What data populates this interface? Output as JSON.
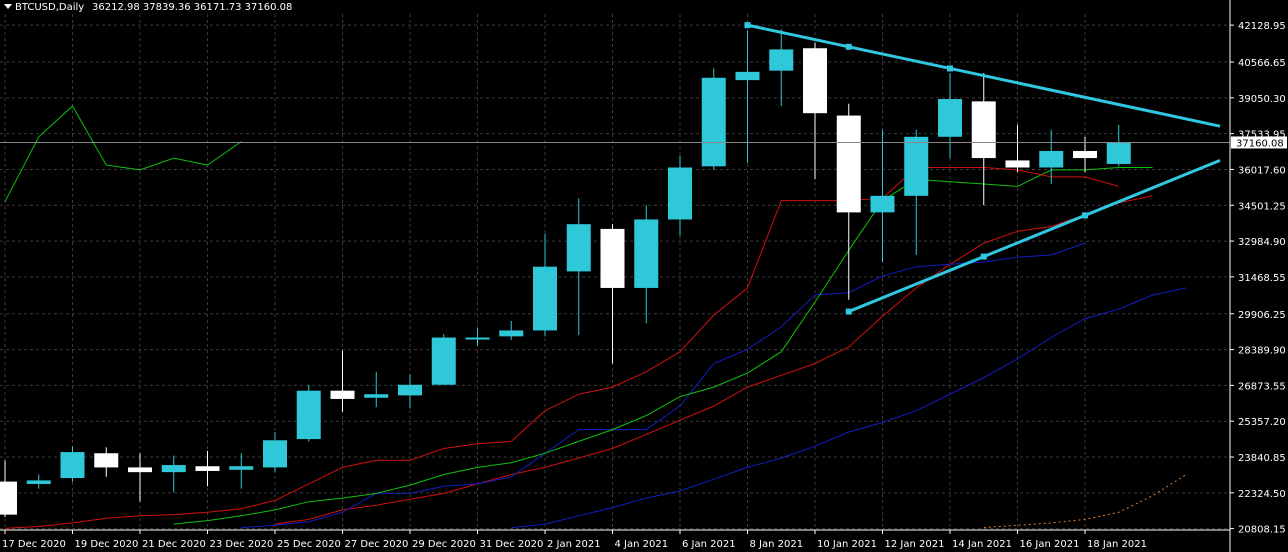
{
  "header": {
    "symbol": "BTCUSD,Daily",
    "ohlc": "36212.98 37839.36 36171.73 37160.08"
  },
  "colors": {
    "background": "#000000",
    "grid": "#3a3a3a",
    "bull_candle": "#2ec8d8",
    "bear_candle": "#ffffff",
    "ma_red": "#d01010",
    "ma_green": "#10c010",
    "ma_blue": "#1020c0",
    "trendline": "#30c8e0",
    "orange": "#e08030"
  },
  "chart_data": {
    "type": "candlestick",
    "price_axis_labels": [
      "42128.95",
      "40566.65",
      "39050.30",
      "37533.95",
      "36017.60",
      "34501.25",
      "32984.90",
      "31468.55",
      "29906.25",
      "28389.90",
      "26873.55",
      "25357.20",
      "23840.85",
      "22324.50",
      "20808.15"
    ],
    "ylim": [
      20750,
      42600
    ],
    "current_price": 37160.08,
    "current_price_label": "37160.08",
    "x_tick_labels": [
      "17 Dec 2020",
      "19 Dec 2020",
      "21 Dec 2020",
      "23 Dec 2020",
      "25 Dec 2020",
      "27 Dec 2020",
      "29 Dec 2020",
      "31 Dec 2020",
      "2 Jan 2021",
      "4 Jan 2021",
      "6 Jan 2021",
      "8 Jan 2021",
      "10 Jan 2021",
      "12 Jan 2021",
      "14 Jan 2021",
      "16 Jan 2021",
      "18 Jan 2021"
    ],
    "candles": [
      {
        "o": 22800,
        "h": 23700,
        "l": 21300,
        "c": 21400
      },
      {
        "o": 22700,
        "h": 23100,
        "l": 22500,
        "c": 22850
      },
      {
        "o": 22950,
        "h": 24300,
        "l": 22800,
        "c": 24050
      },
      {
        "o": 24000,
        "h": 24250,
        "l": 23000,
        "c": 23400
      },
      {
        "o": 23400,
        "h": 24000,
        "l": 21950,
        "c": 23200
      },
      {
        "o": 23200,
        "h": 23900,
        "l": 22350,
        "c": 23500
      },
      {
        "o": 23450,
        "h": 24100,
        "l": 22600,
        "c": 23250
      },
      {
        "o": 23300,
        "h": 24000,
        "l": 22500,
        "c": 23450
      },
      {
        "o": 23400,
        "h": 24900,
        "l": 23200,
        "c": 24550
      },
      {
        "o": 24600,
        "h": 26900,
        "l": 24500,
        "c": 26650
      },
      {
        "o": 26650,
        "h": 28350,
        "l": 25750,
        "c": 26300
      },
      {
        "o": 26350,
        "h": 27450,
        "l": 25950,
        "c": 26500
      },
      {
        "o": 26450,
        "h": 27350,
        "l": 25900,
        "c": 26900
      },
      {
        "o": 26900,
        "h": 29050,
        "l": 26900,
        "c": 28900
      },
      {
        "o": 28850,
        "h": 29300,
        "l": 28550,
        "c": 28900
      },
      {
        "o": 28950,
        "h": 29600,
        "l": 28800,
        "c": 29200
      },
      {
        "o": 29200,
        "h": 33300,
        "l": 28950,
        "c": 31900
      },
      {
        "o": 31700,
        "h": 34800,
        "l": 29000,
        "c": 33700
      },
      {
        "o": 33500,
        "h": 33700,
        "l": 27800,
        "c": 31000
      },
      {
        "o": 31000,
        "h": 34500,
        "l": 29500,
        "c": 33900
      },
      {
        "o": 33900,
        "h": 36600,
        "l": 33200,
        "c": 36100
      },
      {
        "o": 36150,
        "h": 40300,
        "l": 36000,
        "c": 39900
      },
      {
        "o": 39800,
        "h": 41900,
        "l": 36300,
        "c": 40150
      },
      {
        "o": 40200,
        "h": 41950,
        "l": 38700,
        "c": 41100
      },
      {
        "o": 41150,
        "h": 41400,
        "l": 35600,
        "c": 38400
      },
      {
        "o": 38300,
        "h": 38800,
        "l": 30500,
        "c": 34200
      },
      {
        "o": 34200,
        "h": 37700,
        "l": 32100,
        "c": 34900
      },
      {
        "o": 34900,
        "h": 37700,
        "l": 32400,
        "c": 37400
      },
      {
        "o": 37400,
        "h": 40100,
        "l": 36500,
        "c": 39000
      },
      {
        "o": 38900,
        "h": 40100,
        "l": 34500,
        "c": 36500
      },
      {
        "o": 36400,
        "h": 37900,
        "l": 35900,
        "c": 36100
      },
      {
        "o": 36100,
        "h": 37700,
        "l": 35400,
        "c": 36800
      },
      {
        "o": 36800,
        "h": 37400,
        "l": 35900,
        "c": 36500
      },
      {
        "o": 36250,
        "h": 37900,
        "l": 36150,
        "c": 37150
      }
    ],
    "ma_red_1": [
      20820,
      20900,
      21050,
      21250,
      21350,
      21400,
      21500,
      21650,
      22000,
      22700,
      23400,
      23700,
      23700,
      24200,
      24400,
      24500,
      25800,
      26500,
      26800,
      27450,
      28300,
      29850,
      31000,
      34700,
      34700,
      34700,
      34800,
      36100,
      36100,
      36100,
      36000,
      35700,
      35700,
      35300
    ],
    "ma_green_1": [
      null,
      null,
      null,
      null,
      null,
      21000,
      21150,
      21350,
      21600,
      21950,
      22100,
      22300,
      22650,
      23100,
      23400,
      23600,
      24000,
      24500,
      25000,
      25600,
      26400,
      26800,
      27400,
      28300,
      30400,
      32600,
      34700,
      35600,
      35500,
      35400,
      35300,
      36000,
      36000,
      36100,
      36100
    ],
    "ma_blue_1": [
      null,
      null,
      null,
      null,
      null,
      null,
      null,
      20850,
      20950,
      21100,
      21500,
      22300,
      22300,
      22600,
      22700,
      23000,
      24000,
      25000,
      25000,
      25000,
      26000,
      27800,
      28400,
      29350,
      30700,
      30800,
      31500,
      31900,
      32000,
      32100,
      32300,
      32400,
      32900
    ],
    "ma_red_2": [
      null,
      null,
      null,
      null,
      null,
      null,
      null,
      null,
      21000,
      21200,
      21600,
      21800,
      22050,
      22300,
      22700,
      23100,
      23400,
      23800,
      24200,
      24800,
      25400,
      26000,
      26800,
      27300,
      27800,
      28500,
      29800,
      31000,
      32000,
      32900,
      33400,
      33600,
      34100,
      34600,
      34900
    ],
    "ma_blue_2": [
      null,
      null,
      null,
      null,
      null,
      null,
      null,
      null,
      null,
      null,
      null,
      null,
      null,
      null,
      null,
      20850,
      21000,
      21350,
      21700,
      22100,
      22400,
      22900,
      23400,
      23800,
      24300,
      24900,
      25300,
      25800,
      26500,
      27200,
      28000,
      28900,
      29700,
      30100,
      30700,
      31000
    ],
    "green_line_upper": [
      34650,
      37400,
      38700,
      36200,
      36000,
      36500,
      36200,
      37200
    ],
    "orange_dashed": [
      null,
      null,
      null,
      null,
      null,
      null,
      null,
      null,
      null,
      null,
      null,
      null,
      null,
      null,
      null,
      null,
      null,
      null,
      null,
      null,
      null,
      null,
      null,
      null,
      null,
      null,
      null,
      null,
      null,
      20850,
      20950,
      21050,
      21200,
      21500,
      22200,
      23100
    ],
    "trendlines": [
      {
        "from": [
          22,
          42128
        ],
        "to": [
          36,
          37850
        ],
        "points": [
          22,
          25,
          28
        ]
      },
      {
        "from": [
          25,
          30000
        ],
        "to": [
          36,
          36400
        ],
        "points": [
          25,
          29,
          32
        ]
      }
    ]
  }
}
